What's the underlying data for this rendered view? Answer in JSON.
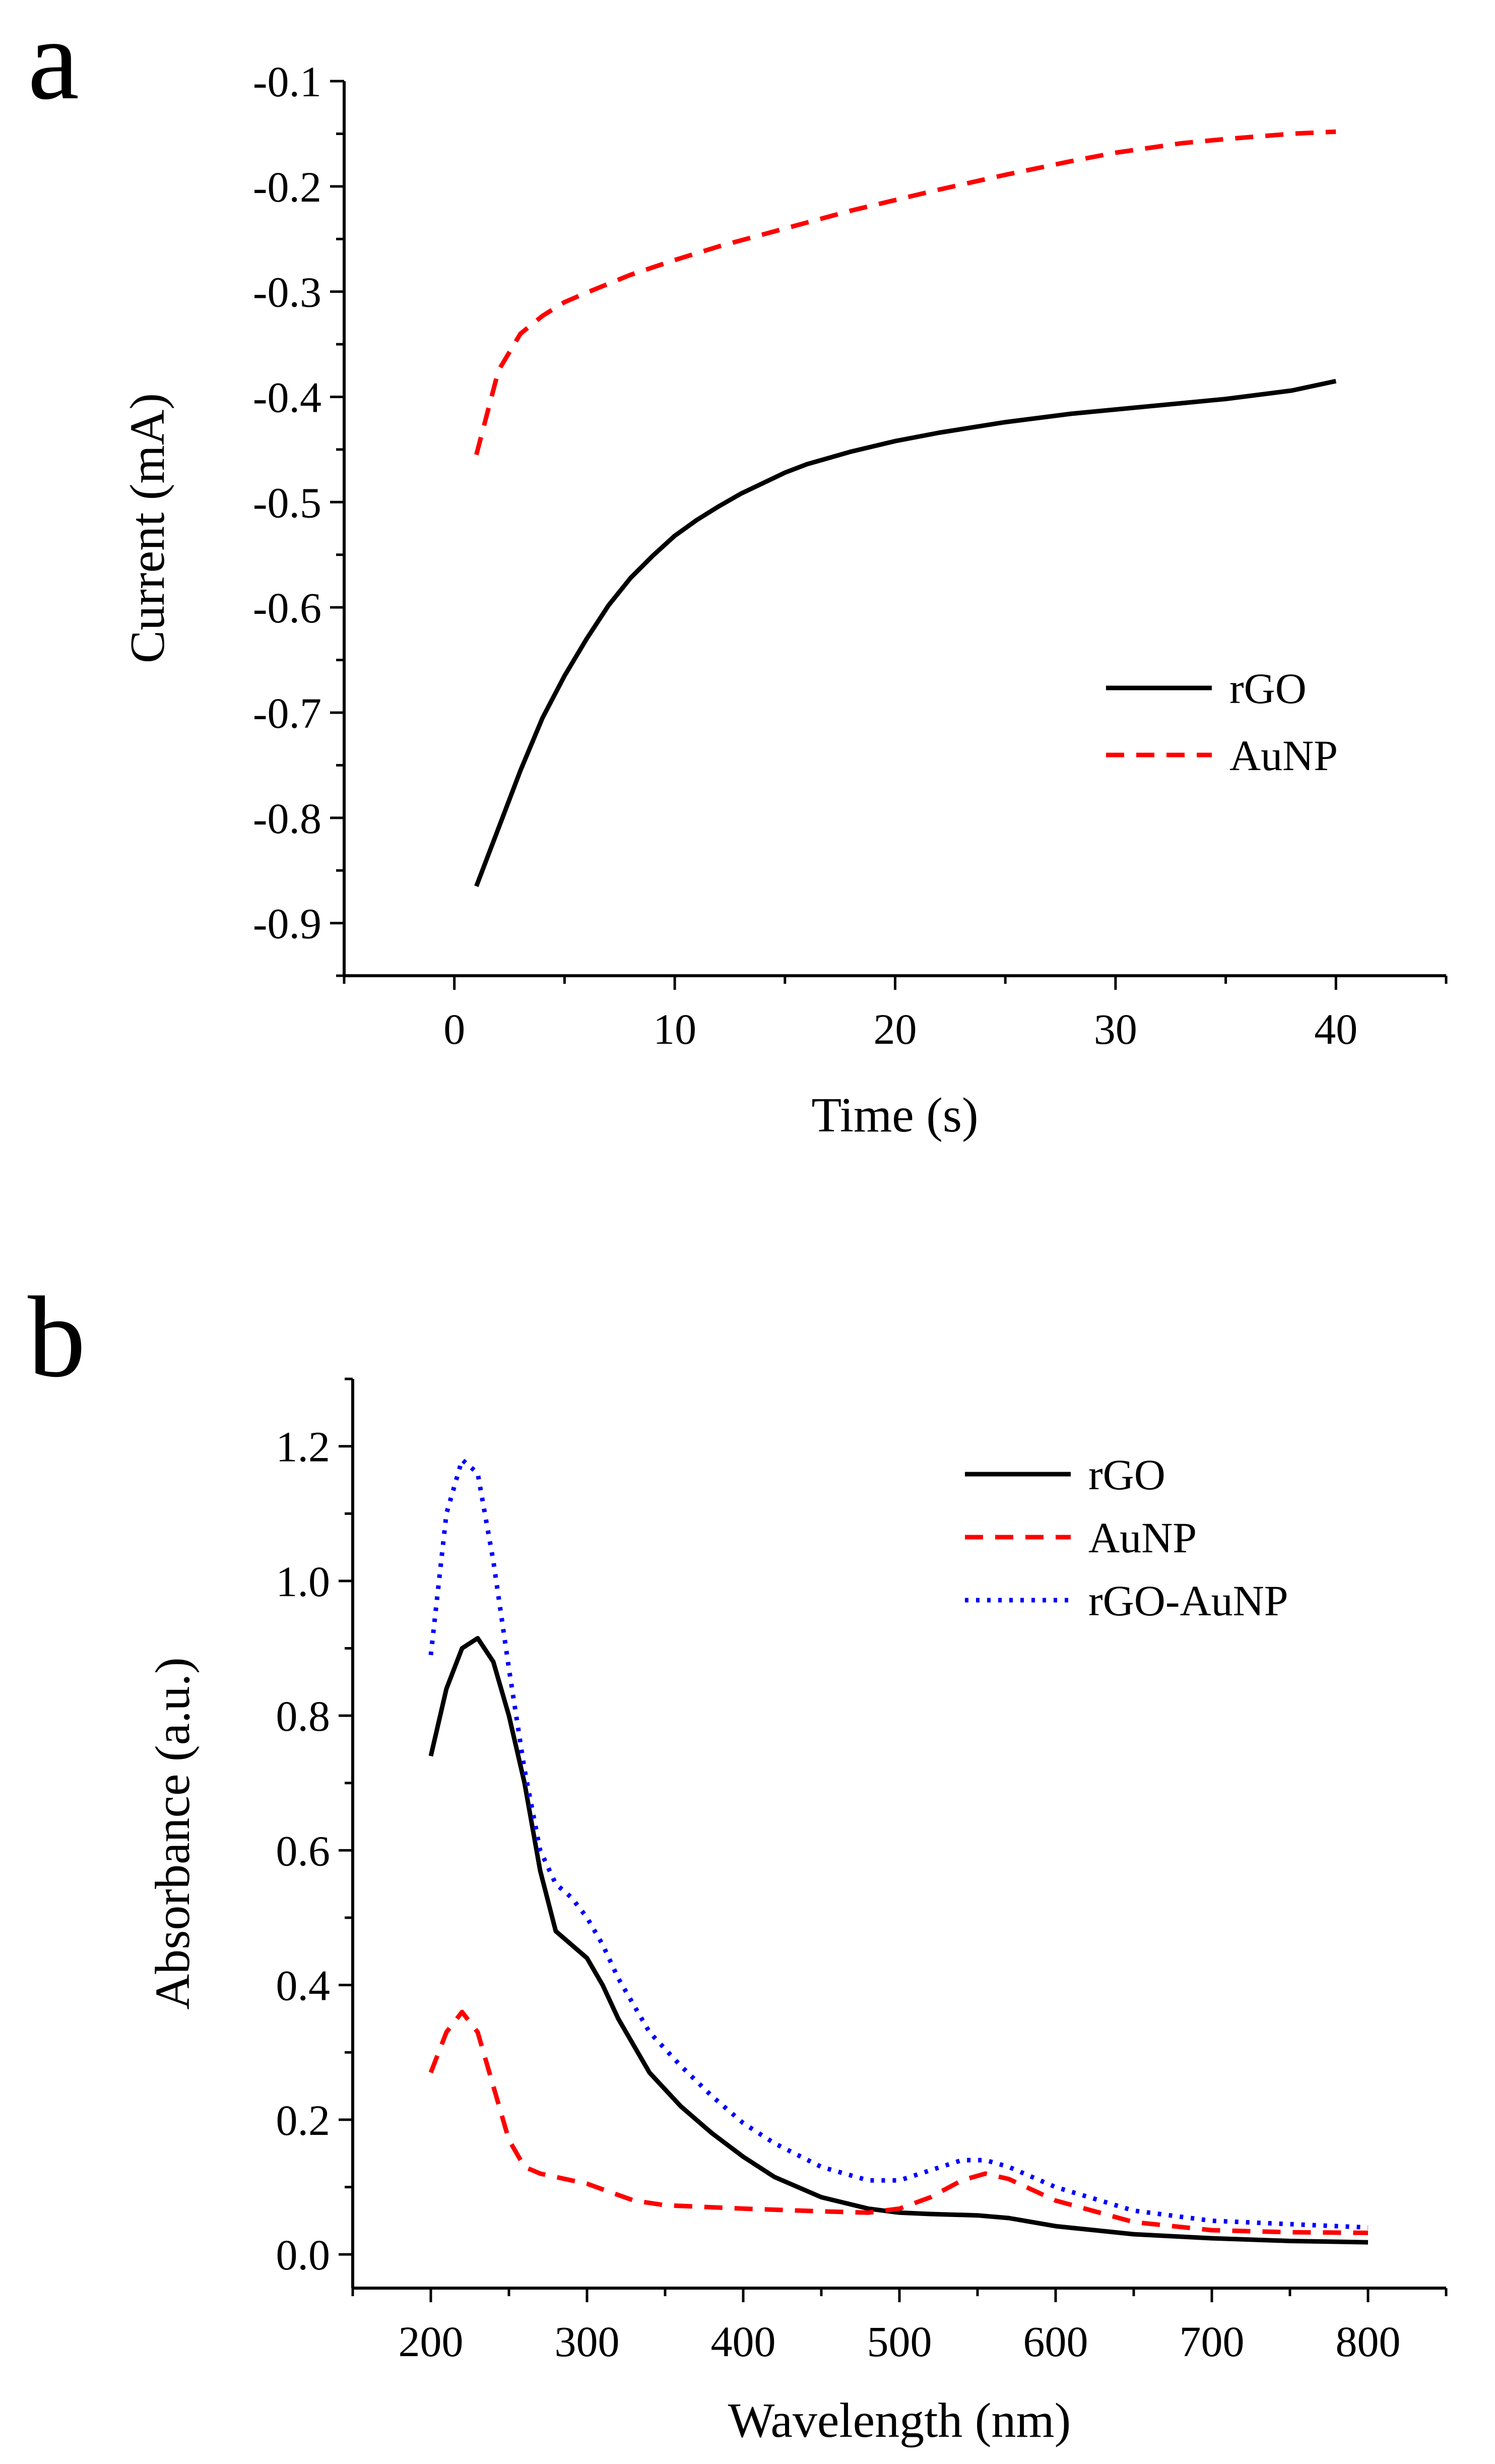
{
  "chart_data": [
    {
      "panel": "a",
      "type": "line",
      "title": "",
      "xlabel": "Time (s)",
      "ylabel": "Current (mA)",
      "xlim": [
        -5,
        45
      ],
      "ylim": [
        -0.95,
        -0.1
      ],
      "xticks": [
        0,
        10,
        20,
        30,
        40
      ],
      "xtick_labels": [
        "0",
        "10",
        "20",
        "30",
        "40"
      ],
      "yticks": [
        -0.9,
        -0.8,
        -0.7,
        -0.6,
        -0.5,
        -0.4,
        -0.3,
        -0.2,
        -0.1
      ],
      "ytick_labels": [
        "-0.9",
        "-0.8",
        "-0.7",
        "-0.6",
        "-0.5",
        "-0.4",
        "-0.3",
        "-0.2",
        "-0.1"
      ],
      "grid": false,
      "legend_position": "center-right",
      "series": [
        {
          "name": "rGO",
          "color": "#000000",
          "dash": "solid",
          "x": [
            1,
            2,
            3,
            4,
            5,
            6,
            7,
            8,
            9,
            10,
            11,
            12,
            13,
            14,
            15,
            16,
            18,
            20,
            22,
            25,
            28,
            30,
            33,
            35,
            38,
            40
          ],
          "y": [
            -0.865,
            -0.81,
            -0.755,
            -0.705,
            -0.665,
            -0.63,
            -0.598,
            -0.572,
            -0.551,
            -0.532,
            -0.517,
            -0.504,
            -0.492,
            -0.482,
            -0.472,
            -0.464,
            -0.452,
            -0.442,
            -0.434,
            -0.424,
            -0.416,
            -0.412,
            -0.406,
            -0.402,
            -0.394,
            -0.385
          ]
        },
        {
          "name": "AuNP",
          "color": "#ff0000",
          "dash": "dashed",
          "x": [
            1,
            2,
            3,
            4,
            5,
            6,
            8,
            10,
            12,
            15,
            18,
            20,
            22,
            25,
            28,
            30,
            33,
            35,
            38,
            40
          ],
          "y": [
            -0.455,
            -0.375,
            -0.34,
            -0.323,
            -0.31,
            -0.301,
            -0.284,
            -0.27,
            -0.257,
            -0.24,
            -0.223,
            -0.213,
            -0.203,
            -0.189,
            -0.176,
            -0.168,
            -0.159,
            -0.155,
            -0.15,
            -0.148
          ]
        }
      ]
    },
    {
      "panel": "b",
      "type": "line",
      "title": "",
      "xlabel": "Wavelength (nm)",
      "ylabel": "Absorbance (a.u.)",
      "xlim": [
        150,
        850
      ],
      "ylim": [
        -0.05,
        1.3
      ],
      "xticks": [
        200,
        300,
        400,
        500,
        600,
        700,
        800
      ],
      "xtick_labels": [
        "200",
        "300",
        "400",
        "500",
        "600",
        "700",
        "800"
      ],
      "yticks": [
        0.0,
        0.2,
        0.4,
        0.6,
        0.8,
        1.0,
        1.2
      ],
      "ytick_labels": [
        "0.0",
        "0.2",
        "0.4",
        "0.6",
        "0.8",
        "1.0",
        "1.2"
      ],
      "grid": false,
      "legend_position": "top-right",
      "series": [
        {
          "name": "rGO",
          "color": "#000000",
          "dash": "solid",
          "x": [
            200,
            210,
            220,
            230,
            240,
            250,
            260,
            270,
            280,
            290,
            300,
            310,
            320,
            340,
            360,
            380,
            400,
            420,
            450,
            480,
            500,
            520,
            550,
            570,
            600,
            650,
            700,
            750,
            800
          ],
          "y": [
            0.74,
            0.84,
            0.9,
            0.915,
            0.88,
            0.8,
            0.7,
            0.57,
            0.48,
            0.46,
            0.44,
            0.4,
            0.35,
            0.27,
            0.22,
            0.18,
            0.145,
            0.115,
            0.085,
            0.068,
            0.062,
            0.06,
            0.058,
            0.054,
            0.042,
            0.03,
            0.024,
            0.02,
            0.018
          ]
        },
        {
          "name": "AuNP",
          "color": "#ff0000",
          "dash": "dashed",
          "x": [
            200,
            210,
            220,
            230,
            240,
            250,
            260,
            270,
            280,
            300,
            330,
            350,
            400,
            450,
            480,
            500,
            520,
            540,
            555,
            570,
            600,
            650,
            700,
            750,
            800
          ],
          "y": [
            0.27,
            0.33,
            0.36,
            0.33,
            0.25,
            0.17,
            0.13,
            0.12,
            0.115,
            0.105,
            0.08,
            0.073,
            0.068,
            0.064,
            0.062,
            0.068,
            0.085,
            0.11,
            0.12,
            0.112,
            0.08,
            0.048,
            0.036,
            0.033,
            0.032
          ]
        },
        {
          "name": "rGO-AuNP",
          "color": "#0000ff",
          "dash": "dotted",
          "x": [
            200,
            210,
            220,
            230,
            240,
            250,
            260,
            270,
            280,
            290,
            300,
            310,
            320,
            340,
            360,
            380,
            400,
            420,
            450,
            480,
            500,
            520,
            540,
            555,
            570,
            600,
            650,
            700,
            750,
            800
          ],
          "y": [
            0.89,
            1.1,
            1.18,
            1.16,
            1.03,
            0.87,
            0.72,
            0.6,
            0.55,
            0.53,
            0.5,
            0.46,
            0.41,
            0.33,
            0.28,
            0.235,
            0.195,
            0.165,
            0.13,
            0.11,
            0.11,
            0.125,
            0.14,
            0.14,
            0.13,
            0.1,
            0.065,
            0.05,
            0.045,
            0.04
          ]
        }
      ]
    }
  ],
  "panels": [
    {
      "label": "a"
    },
    {
      "label": "b"
    }
  ]
}
